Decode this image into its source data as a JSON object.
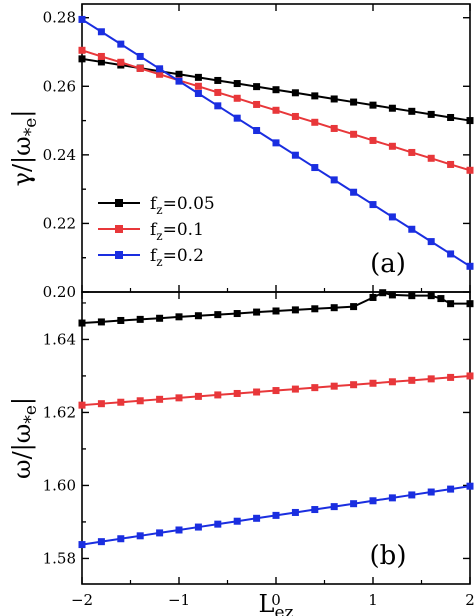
{
  "chart_data": [
    {
      "type": "line",
      "panel_label": "(a)",
      "ylabel": {
        "main": "γ/|ω",
        "sub": "*e",
        "close": "|"
      },
      "xlim": [
        -2,
        2
      ],
      "ylim": [
        0.2,
        0.284
      ],
      "yticks": [
        0.2,
        0.22,
        0.24,
        0.26,
        0.28
      ],
      "ytick_labels": [
        "0.20",
        "0.22",
        "0.24",
        "0.26",
        "0.28"
      ],
      "legend": {
        "placement": "left-center"
      },
      "series": [
        {
          "name": {
            "main": "f",
            "sub": "z",
            "rest": "=0.05"
          },
          "color": "#000000",
          "x": [
            -2.0,
            -1.8,
            -1.6,
            -1.4,
            -1.2,
            -1.0,
            -0.8,
            -0.6,
            -0.4,
            -0.2,
            0.0,
            0.2,
            0.4,
            0.6,
            0.8,
            1.0,
            1.2,
            1.4,
            1.6,
            1.8,
            2.0
          ],
          "y": [
            0.268,
            0.2671,
            0.2662,
            0.2653,
            0.2644,
            0.2635,
            0.2626,
            0.2617,
            0.2608,
            0.2599,
            0.259,
            0.2581,
            0.2572,
            0.2563,
            0.2554,
            0.2545,
            0.2536,
            0.2527,
            0.2518,
            0.2509,
            0.25
          ]
        },
        {
          "name": {
            "main": "f",
            "sub": "z",
            "rest": "=0.1"
          },
          "color": "#e8373a",
          "x": [
            -2.0,
            -1.8,
            -1.6,
            -1.4,
            -1.2,
            -1.0,
            -0.8,
            -0.6,
            -0.4,
            -0.2,
            0.0,
            0.2,
            0.4,
            0.6,
            0.8,
            1.0,
            1.2,
            1.4,
            1.6,
            1.8,
            2.0
          ],
          "y": [
            0.2705,
            0.2687,
            0.267,
            0.2652,
            0.2635,
            0.2617,
            0.26,
            0.2582,
            0.2565,
            0.2547,
            0.253,
            0.2512,
            0.2495,
            0.2477,
            0.246,
            0.2442,
            0.2425,
            0.2407,
            0.239,
            0.2372,
            0.2355
          ]
        },
        {
          "name": {
            "main": "f",
            "sub": "z",
            "rest": "=0.2"
          },
          "color": "#1a2ee0",
          "x": [
            -2.0,
            -1.8,
            -1.6,
            -1.4,
            -1.2,
            -1.0,
            -0.8,
            -0.6,
            -0.4,
            -0.2,
            0.0,
            0.2,
            0.4,
            0.6,
            0.8,
            1.0,
            1.2,
            1.4,
            1.6,
            1.8,
            2.0
          ],
          "y": [
            0.2795,
            0.2759,
            0.2723,
            0.2687,
            0.2651,
            0.2615,
            0.2579,
            0.2543,
            0.2507,
            0.2471,
            0.2435,
            0.2399,
            0.2363,
            0.2327,
            0.2291,
            0.2255,
            0.2219,
            0.2183,
            0.2147,
            0.2111,
            0.2075
          ]
        }
      ]
    },
    {
      "type": "line",
      "panel_label": "(b)",
      "ylabel": {
        "main": "ω/|ω",
        "sub": "*e",
        "close": "|"
      },
      "xlabel": {
        "main": "L",
        "sub": "ez"
      },
      "xlim": [
        -2,
        2
      ],
      "ylim": [
        1.573,
        1.653
      ],
      "xticks": [
        -2,
        -1,
        0,
        1,
        2
      ],
      "xtick_labels": [
        "−2",
        "−1",
        "0",
        "1",
        "2"
      ],
      "yticks": [
        1.58,
        1.6,
        1.62,
        1.64
      ],
      "ytick_labels": [
        "1.58",
        "1.60",
        "1.62",
        "1.64"
      ],
      "series": [
        {
          "name": "fz=0.05",
          "color": "#000000",
          "x": [
            -2.0,
            -1.8,
            -1.6,
            -1.4,
            -1.2,
            -1.0,
            -0.8,
            -0.6,
            -0.4,
            -0.2,
            0.0,
            0.2,
            0.4,
            0.6,
            0.8,
            1.0,
            1.1,
            1.2,
            1.4,
            1.6,
            1.7,
            1.8,
            2.0
          ],
          "y": [
            1.6445,
            1.6448,
            1.6452,
            1.6455,
            1.6458,
            1.6462,
            1.6465,
            1.6468,
            1.6471,
            1.6475,
            1.6478,
            1.6481,
            1.6484,
            1.6487,
            1.649,
            1.6515,
            1.6528,
            1.6522,
            1.652,
            1.652,
            1.6512,
            1.6498,
            1.6498
          ]
        },
        {
          "name": "fz=0.1",
          "color": "#e8373a",
          "x": [
            -2.0,
            -1.8,
            -1.6,
            -1.4,
            -1.2,
            -1.0,
            -0.8,
            -0.6,
            -0.4,
            -0.2,
            0.0,
            0.2,
            0.4,
            0.6,
            0.8,
            1.0,
            1.2,
            1.4,
            1.6,
            1.8,
            2.0
          ],
          "y": [
            1.622,
            1.6224,
            1.6228,
            1.6232,
            1.6236,
            1.624,
            1.6244,
            1.6248,
            1.6252,
            1.6256,
            1.626,
            1.6264,
            1.6268,
            1.6272,
            1.6276,
            1.628,
            1.6284,
            1.6288,
            1.6292,
            1.6296,
            1.63
          ]
        },
        {
          "name": "fz=0.2",
          "color": "#1a2ee0",
          "x": [
            -2.0,
            -1.8,
            -1.6,
            -1.4,
            -1.2,
            -1.0,
            -0.8,
            -0.6,
            -0.4,
            -0.2,
            0.0,
            0.2,
            0.4,
            0.6,
            0.8,
            1.0,
            1.2,
            1.4,
            1.6,
            1.8,
            2.0
          ],
          "y": [
            1.5838,
            1.5846,
            1.5854,
            1.5862,
            1.587,
            1.5878,
            1.5886,
            1.5894,
            1.5902,
            1.591,
            1.5918,
            1.5926,
            1.5934,
            1.5942,
            1.595,
            1.5958,
            1.5966,
            1.5974,
            1.5982,
            1.599,
            1.5998
          ]
        }
      ]
    }
  ]
}
